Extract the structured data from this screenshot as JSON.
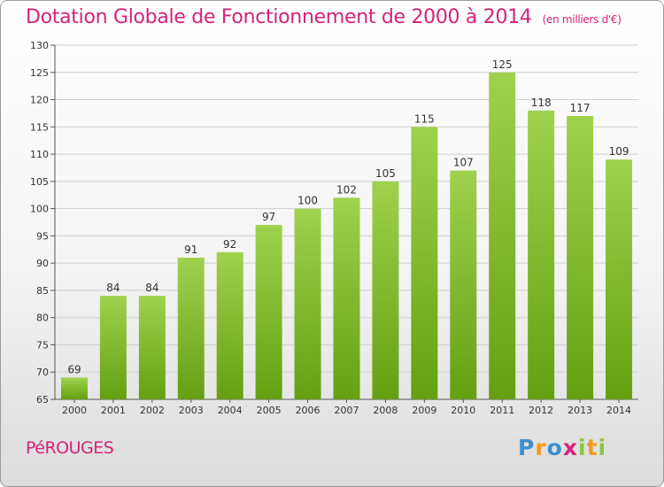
{
  "title": "Dotation Globale de Fonctionnement de 2000 à 2014",
  "subtitle": "(en milliers d'€)",
  "city": "PéROUGES",
  "logo": [
    "P",
    "r",
    "o",
    "x",
    "i",
    "t",
    "i"
  ],
  "colors": {
    "accent": "#d4237a",
    "bar_top": "#9fd24e",
    "bar_bottom": "#64a012"
  },
  "chart_data": {
    "type": "bar",
    "categories": [
      "2000",
      "2001",
      "2002",
      "2003",
      "2004",
      "2005",
      "2006",
      "2007",
      "2008",
      "2009",
      "2010",
      "2011",
      "2012",
      "2013",
      "2014"
    ],
    "values": [
      69,
      84,
      84,
      91,
      92,
      97,
      100,
      102,
      105,
      115,
      107,
      125,
      118,
      117,
      109
    ],
    "ylim": [
      65,
      130
    ],
    "yticks": [
      65,
      70,
      75,
      80,
      85,
      90,
      95,
      100,
      105,
      110,
      115,
      120,
      125,
      130
    ],
    "grid": true
  }
}
